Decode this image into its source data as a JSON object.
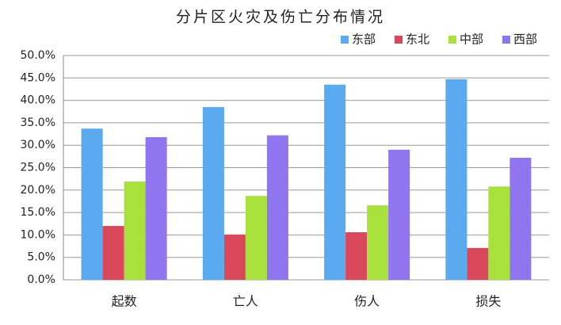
{
  "chart_data": {
    "type": "bar",
    "title": "分片区火灾及伤亡分布情况",
    "categories": [
      "起数",
      "亡人",
      "伤人",
      "损失"
    ],
    "series": [
      {
        "name": "东部",
        "color": "#5aaaf0",
        "values": [
          33.7,
          38.5,
          43.5,
          44.7
        ]
      },
      {
        "name": "东北",
        "color": "#d9475a",
        "values": [
          12.0,
          10.1,
          10.6,
          7.1
        ]
      },
      {
        "name": "中部",
        "color": "#a8e03c",
        "values": [
          21.9,
          18.7,
          16.6,
          20.8
        ]
      },
      {
        "name": "西部",
        "color": "#8f75f0",
        "values": [
          31.8,
          32.2,
          29.0,
          27.2
        ]
      }
    ],
    "ylim": [
      0,
      50
    ],
    "yticks": [
      {
        "value": 0,
        "label": "0.0%"
      },
      {
        "value": 5,
        "label": "5.0%"
      },
      {
        "value": 10,
        "label": "10.0%"
      },
      {
        "value": 15,
        "label": "15.0%"
      },
      {
        "value": 20,
        "label": "20.0%"
      },
      {
        "value": 25,
        "label": "25.0%"
      },
      {
        "value": 30,
        "label": "30.0%"
      },
      {
        "value": 35,
        "label": "35.0%"
      },
      {
        "value": 40,
        "label": "40.0%"
      },
      {
        "value": 45,
        "label": "45.0%"
      },
      {
        "value": 50,
        "label": "50.0%"
      }
    ],
    "grid": true,
    "legend": "top-right"
  }
}
